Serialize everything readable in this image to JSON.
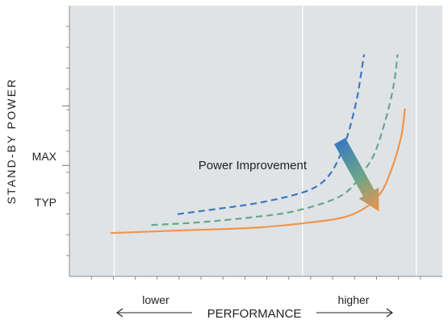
{
  "chart_data": {
    "type": "line",
    "title": "",
    "xlabel": "PERFORMANCE",
    "ylabel": "STAND-BY POWER",
    "x_direction_labels": {
      "low": "lower",
      "high": "higher"
    },
    "y_tick_labels": [
      "MAX",
      "TYP"
    ],
    "y_ticks": [
      {
        "label": "MAX",
        "y": 0.63
      },
      {
        "label": "TYP",
        "y": 0.41
      }
    ],
    "xlim": [
      0,
      1
    ],
    "ylim": [
      0,
      1
    ],
    "grid": true,
    "annotation": "Power Improvement",
    "series": [
      {
        "style": "dashed",
        "color": "#3a78c0",
        "x": [
          0.29,
          0.4,
          0.5,
          0.6,
          0.66,
          0.7,
          0.73,
          0.75,
          0.77,
          0.78,
          0.79
        ],
        "y": [
          0.23,
          0.25,
          0.27,
          0.3,
          0.33,
          0.38,
          0.46,
          0.54,
          0.65,
          0.73,
          0.82
        ]
      },
      {
        "style": "dashed",
        "color": "#6aa58a",
        "x": [
          0.22,
          0.35,
          0.5,
          0.6,
          0.7,
          0.75,
          0.79,
          0.82,
          0.85,
          0.87,
          0.88
        ],
        "y": [
          0.19,
          0.2,
          0.22,
          0.24,
          0.28,
          0.32,
          0.39,
          0.46,
          0.59,
          0.71,
          0.82
        ]
      },
      {
        "style": "solid",
        "color": "#f0954a",
        "x": [
          0.11,
          0.3,
          0.5,
          0.65,
          0.74,
          0.8,
          0.84,
          0.87,
          0.89,
          0.9
        ],
        "y": [
          0.16,
          0.17,
          0.18,
          0.2,
          0.22,
          0.26,
          0.32,
          0.42,
          0.52,
          0.62
        ]
      }
    ],
    "arrow": {
      "from": {
        "x": 0.725,
        "y": 0.5
      },
      "to": {
        "x": 0.83,
        "y": 0.24
      },
      "gradient": [
        "#3a78c0",
        "#6aa58a",
        "#f0954a"
      ]
    },
    "plot_background": "#dfe3e6",
    "grid_color": "#ffffff"
  }
}
